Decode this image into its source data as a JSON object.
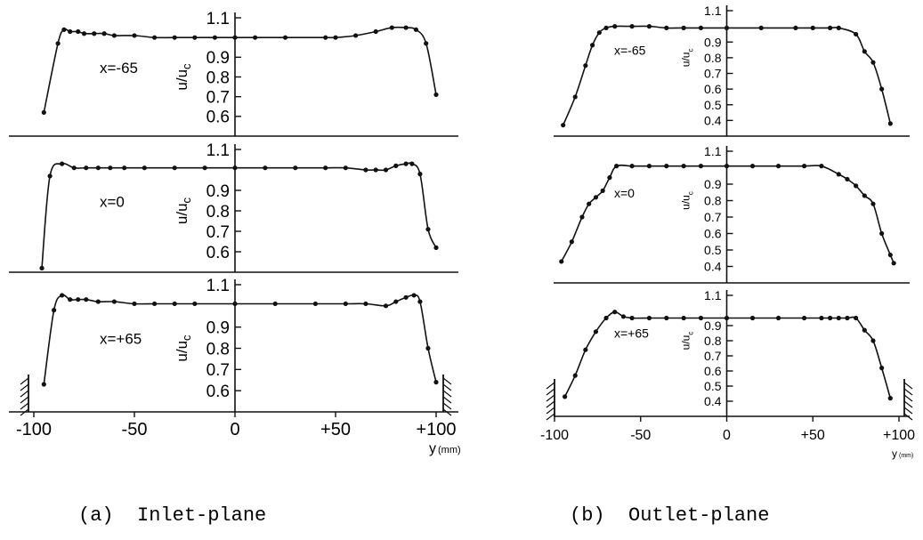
{
  "captions": {
    "left": "(a)  Inlet-plane",
    "right": "(b)  Outlet-plane"
  },
  "x_unit_label": "y",
  "x_unit_suffix": "(mm)",
  "ylabel": "u/u",
  "ylabel_sub": "c",
  "chart_data": [
    {
      "type": "line",
      "panel": "a",
      "station": "x=-65",
      "x_label": "y (mm)",
      "y_label": "u/uc",
      "xlim": [
        -100,
        100
      ],
      "ylim": [
        0.5,
        1.1
      ],
      "yticks": [
        "0.6",
        "0.7",
        "0.8",
        "0.9",
        "1.1"
      ],
      "x": [
        -95,
        -88,
        -85,
        -82,
        -78,
        -75,
        -70,
        -65,
        -60,
        -50,
        -40,
        -30,
        -20,
        -10,
        0,
        10,
        25,
        45,
        50,
        60,
        70,
        78,
        85,
        90,
        95,
        100
      ],
      "values": [
        0.62,
        0.97,
        1.04,
        1.03,
        1.03,
        1.02,
        1.02,
        1.02,
        1.01,
        1.01,
        1.0,
        1.0,
        1.0,
        1.0,
        1.0,
        1.0,
        1.0,
        1.0,
        1.0,
        1.01,
        1.03,
        1.05,
        1.05,
        1.04,
        0.97,
        0.71
      ]
    },
    {
      "type": "line",
      "panel": "a",
      "station": "x=0",
      "x_label": "y (mm)",
      "y_label": "u/uc",
      "xlim": [
        -100,
        100
      ],
      "ylim": [
        0.5,
        1.1
      ],
      "yticks": [
        "0.6",
        "0.7",
        "0.8",
        "0.9",
        "1.1"
      ],
      "x": [
        -96,
        -92,
        -86,
        -80,
        -74,
        -68,
        -62,
        -55,
        -45,
        -30,
        -15,
        0,
        15,
        30,
        45,
        55,
        65,
        70,
        75,
        80,
        85,
        88,
        92,
        96,
        100
      ],
      "values": [
        0.52,
        0.97,
        1.03,
        1.01,
        1.01,
        1.01,
        1.01,
        1.01,
        1.01,
        1.01,
        1.01,
        1.01,
        1.01,
        1.01,
        1.01,
        1.01,
        1.0,
        1.0,
        1.0,
        1.02,
        1.03,
        1.03,
        0.98,
        0.71,
        0.62
      ]
    },
    {
      "type": "line",
      "panel": "a",
      "station": "x=+65",
      "x_label": "y (mm)",
      "y_label": "u/uc",
      "xlim": [
        -100,
        100
      ],
      "ylim": [
        0.5,
        1.1
      ],
      "yticks": [
        "0.6",
        "0.7",
        "0.8",
        "0.9",
        "1.1"
      ],
      "x": [
        -95,
        -90,
        -86,
        -82,
        -78,
        -74,
        -68,
        -60,
        -50,
        -40,
        -30,
        -20,
        0,
        20,
        40,
        55,
        65,
        75,
        80,
        85,
        89,
        92,
        96,
        100
      ],
      "values": [
        0.63,
        0.98,
        1.05,
        1.03,
        1.03,
        1.03,
        1.02,
        1.02,
        1.01,
        1.01,
        1.01,
        1.01,
        1.01,
        1.01,
        1.01,
        1.01,
        1.01,
        1.0,
        1.02,
        1.04,
        1.05,
        1.02,
        0.8,
        0.64
      ]
    },
    {
      "type": "line",
      "panel": "b",
      "station": "x=-65",
      "x_label": "y (mm)",
      "y_label": "u/uc",
      "xlim": [
        -100,
        100
      ],
      "ylim": [
        0.3,
        1.1
      ],
      "yticks": [
        "0.4",
        "0.5",
        "0.6",
        "0.7",
        "0.8",
        "0.9",
        "1.1"
      ],
      "x": [
        -95,
        -88,
        -82,
        -78,
        -74,
        -70,
        -65,
        -55,
        -45,
        -35,
        -25,
        -15,
        0,
        20,
        40,
        50,
        60,
        65,
        75,
        80,
        85,
        90,
        95
      ],
      "values": [
        0.37,
        0.55,
        0.75,
        0.88,
        0.96,
        0.99,
        1.0,
        1.0,
        1.0,
        0.99,
        0.99,
        0.99,
        0.99,
        0.99,
        0.99,
        0.99,
        0.99,
        0.99,
        0.95,
        0.84,
        0.77,
        0.6,
        0.38
      ]
    },
    {
      "type": "line",
      "panel": "b",
      "station": "x=0",
      "x_label": "y (mm)",
      "y_label": "u/uc",
      "xlim": [
        -100,
        100
      ],
      "ylim": [
        0.3,
        1.1
      ],
      "yticks": [
        "0.4",
        "0.5",
        "0.6",
        "0.7",
        "0.8",
        "0.9",
        "1.1"
      ],
      "x": [
        -96,
        -90,
        -84,
        -80,
        -76,
        -72,
        -68,
        -64,
        -55,
        -45,
        -35,
        -25,
        -15,
        0,
        15,
        30,
        45,
        55,
        65,
        70,
        75,
        80,
        85,
        90,
        95,
        97
      ],
      "values": [
        0.43,
        0.55,
        0.7,
        0.78,
        0.82,
        0.86,
        0.94,
        1.01,
        1.01,
        1.01,
        1.01,
        1.01,
        1.01,
        1.01,
        1.01,
        1.01,
        1.01,
        1.01,
        0.96,
        0.93,
        0.89,
        0.83,
        0.78,
        0.6,
        0.47,
        0.42
      ]
    },
    {
      "type": "line",
      "panel": "b",
      "station": "x=+65",
      "x_label": "y (mm)",
      "y_label": "u/uc",
      "xlim": [
        -100,
        100
      ],
      "ylim": [
        0.3,
        1.1
      ],
      "yticks": [
        "0.4",
        "0.5",
        "0.6",
        "0.7",
        "0.8",
        "0.9",
        "1.1"
      ],
      "x": [
        -94,
        -88,
        -82,
        -76,
        -70,
        -65,
        -60,
        -55,
        -45,
        -35,
        -25,
        -15,
        0,
        15,
        30,
        45,
        55,
        60,
        65,
        70,
        75,
        80,
        85,
        90,
        95
      ],
      "values": [
        0.43,
        0.57,
        0.74,
        0.86,
        0.95,
        0.99,
        0.96,
        0.95,
        0.95,
        0.95,
        0.95,
        0.95,
        0.95,
        0.95,
        0.95,
        0.95,
        0.95,
        0.95,
        0.95,
        0.95,
        0.95,
        0.87,
        0.8,
        0.62,
        0.42
      ]
    }
  ]
}
